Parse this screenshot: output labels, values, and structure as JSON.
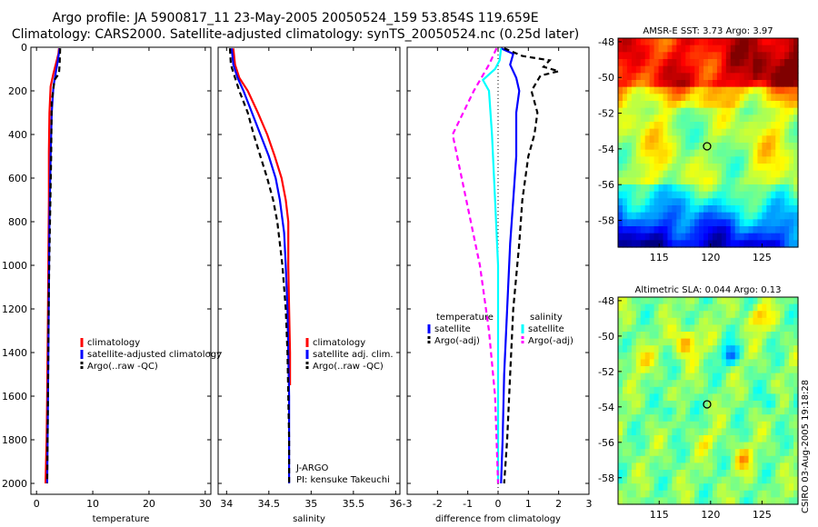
{
  "title_line1": "Argo profile: JA 5900817_11 23-May-2005 20050524_159 53.854S 119.659E",
  "title_line2": "Climatology: CARS2000. Satellite-adjusted climatology: synTS_20050524.nc (0.25d later)",
  "timestamp": "CSIRO 03-Aug-2005 19:18:28",
  "colors": {
    "climatology": "#ff0000",
    "satellite": "#0000ff",
    "argo": "#000000",
    "salinity_satellite": "#00ffff",
    "salinity_argo": "#ff00ff"
  },
  "chart_data": [
    {
      "type": "line",
      "xlabel": "temperature",
      "ylabel": "",
      "xlim": [
        -1,
        31
      ],
      "ylim": [
        2050,
        0
      ],
      "y_reversed": true,
      "xticks": [
        0,
        10,
        20,
        30
      ],
      "yticks": [
        0,
        200,
        400,
        600,
        800,
        1000,
        1200,
        1400,
        1600,
        1800,
        2000
      ],
      "legend_position": "center-right",
      "legend": [
        "climatology",
        "satellite-adjusted climatology",
        "Argo(..raw -QC)"
      ],
      "series": [
        {
          "name": "climatology",
          "color": "#ff0000",
          "dash": "",
          "points": [
            [
              4.0,
              5
            ],
            [
              3.9,
              30
            ],
            [
              3.6,
              60
            ],
            [
              3.0,
              120
            ],
            [
              2.5,
              180
            ],
            [
              2.3,
              300
            ],
            [
              2.2,
              480
            ],
            [
              2.2,
              700
            ],
            [
              2.1,
              1000
            ],
            [
              2.0,
              1300
            ],
            [
              1.9,
              1600
            ],
            [
              1.8,
              1800
            ],
            [
              1.6,
              2000
            ]
          ]
        },
        {
          "name": "satellite-adjusted climatology",
          "color": "#0000ff",
          "dash": "",
          "points": [
            [
              4.1,
              5
            ],
            [
              3.8,
              60
            ],
            [
              3.4,
              120
            ],
            [
              3.0,
              180
            ],
            [
              2.7,
              300
            ],
            [
              2.5,
              500
            ],
            [
              2.3,
              800
            ],
            [
              2.2,
              1100
            ],
            [
              2.1,
              1400
            ],
            [
              2.0,
              1700
            ],
            [
              1.9,
              2000
            ]
          ]
        },
        {
          "name": "Argo(..raw -QC)",
          "color": "#000000",
          "dash": "6,4",
          "points": [
            [
              4.2,
              5
            ],
            [
              4.1,
              80
            ],
            [
              4.0,
              120
            ],
            [
              3.2,
              150
            ],
            [
              2.7,
              250
            ],
            [
              2.6,
              500
            ],
            [
              2.4,
              800
            ],
            [
              2.2,
              1100
            ],
            [
              2.1,
              1400
            ],
            [
              2.0,
              1700
            ],
            [
              1.9,
              2000
            ]
          ]
        }
      ]
    },
    {
      "type": "line",
      "xlabel": "salinity",
      "ylabel": "",
      "xlim": [
        33.9,
        36.05
      ],
      "ylim": [
        2050,
        0
      ],
      "y_reversed": true,
      "xticks": [
        34,
        34.5,
        35,
        35.5,
        36
      ],
      "yticks": [
        0,
        200,
        400,
        600,
        800,
        1000,
        1200,
        1400,
        1600,
        1800,
        2000
      ],
      "legend_position": "center-right",
      "legend": [
        "climatology",
        "satellite adj. clim.",
        "Argo(..raw -QC)"
      ],
      "annotations": [
        "J-ARGO",
        "PI: kensuke Takeuchi"
      ],
      "series": [
        {
          "name": "climatology",
          "color": "#ff0000",
          "dash": "",
          "points": [
            [
              34.08,
              5
            ],
            [
              34.1,
              80
            ],
            [
              34.15,
              140
            ],
            [
              34.25,
              200
            ],
            [
              34.37,
              300
            ],
            [
              34.48,
              400
            ],
            [
              34.57,
              500
            ],
            [
              34.65,
              600
            ],
            [
              34.7,
              700
            ],
            [
              34.73,
              800
            ],
            [
              34.73,
              900
            ],
            [
              34.73,
              1000
            ],
            [
              34.74,
              1200
            ],
            [
              34.75,
              1400
            ],
            [
              34.75,
              1550
            ]
          ]
        },
        {
          "name": "satellite adj. clim.",
          "color": "#0000ff",
          "dash": "",
          "points": [
            [
              34.06,
              5
            ],
            [
              34.08,
              80
            ],
            [
              34.13,
              140
            ],
            [
              34.2,
              200
            ],
            [
              34.3,
              300
            ],
            [
              34.4,
              400
            ],
            [
              34.5,
              500
            ],
            [
              34.58,
              600
            ],
            [
              34.63,
              700
            ],
            [
              34.68,
              850
            ],
            [
              34.7,
              1000
            ],
            [
              34.72,
              1200
            ],
            [
              34.73,
              1400
            ],
            [
              34.74,
              1600
            ],
            [
              34.74,
              1800
            ],
            [
              34.74,
              2000
            ]
          ]
        },
        {
          "name": "Argo(..raw -QC)",
          "color": "#000000",
          "dash": "6,4",
          "points": [
            [
              34.04,
              5
            ],
            [
              34.05,
              80
            ],
            [
              34.1,
              140
            ],
            [
              34.15,
              200
            ],
            [
              34.25,
              300
            ],
            [
              34.32,
              400
            ],
            [
              34.4,
              500
            ],
            [
              34.48,
              600
            ],
            [
              34.55,
              700
            ],
            [
              34.6,
              800
            ],
            [
              34.63,
              900
            ],
            [
              34.66,
              1000
            ],
            [
              34.7,
              1200
            ],
            [
              34.72,
              1400
            ],
            [
              34.73,
              1600
            ],
            [
              34.74,
              1800
            ],
            [
              34.74,
              2000
            ]
          ]
        }
      ]
    },
    {
      "type": "line",
      "xlabel": "difference from climatology",
      "ylabel": "",
      "xlim": [
        -3,
        3
      ],
      "ylim": [
        2050,
        0
      ],
      "y_reversed": true,
      "xticks": [
        -3,
        -2,
        -1,
        0,
        1,
        2,
        3
      ],
      "yticks": [
        0,
        200,
        400,
        600,
        800,
        1000,
        1200,
        1400,
        1600,
        1800,
        2000
      ],
      "legend_position": "center",
      "legend_left_title": "temperature",
      "legend_left": [
        "satellite",
        "Argo(-adj)"
      ],
      "legend_right_title": "salinity",
      "legend_right": [
        "satellite",
        "Argo(-adj)"
      ],
      "series": [
        {
          "name": "temperature satellite",
          "color": "#0000ff",
          "dash": "",
          "points": [
            [
              0.1,
              5
            ],
            [
              0.5,
              30
            ],
            [
              0.4,
              80
            ],
            [
              0.6,
              140
            ],
            [
              0.7,
              200
            ],
            [
              0.6,
              300
            ],
            [
              0.6,
              500
            ],
            [
              0.5,
              700
            ],
            [
              0.4,
              900
            ],
            [
              0.3,
              1200
            ],
            [
              0.2,
              1500
            ],
            [
              0.15,
              1800
            ],
            [
              0.1,
              2000
            ]
          ]
        },
        {
          "name": "temperature Argo(-adj)",
          "color": "#000000",
          "dash": "6,4",
          "points": [
            [
              0.2,
              5
            ],
            [
              0.8,
              40
            ],
            [
              1.7,
              60
            ],
            [
              1.5,
              90
            ],
            [
              2.0,
              110
            ],
            [
              1.4,
              130
            ],
            [
              1.1,
              200
            ],
            [
              1.3,
              300
            ],
            [
              1.2,
              400
            ],
            [
              1.0,
              500
            ],
            [
              0.8,
              700
            ],
            [
              0.7,
              900
            ],
            [
              0.5,
              1200
            ],
            [
              0.4,
              1500
            ],
            [
              0.3,
              1800
            ],
            [
              0.2,
              2000
            ]
          ]
        },
        {
          "name": "salinity satellite",
          "color": "#00ffff",
          "dash": "",
          "points": [
            [
              0.1,
              5
            ],
            [
              0.05,
              60
            ],
            [
              -0.1,
              100
            ],
            [
              -0.5,
              150
            ],
            [
              -0.3,
              200
            ],
            [
              -0.2,
              400
            ],
            [
              -0.1,
              700
            ],
            [
              0.0,
              1000
            ],
            [
              0.0,
              1500
            ],
            [
              0.0,
              2000
            ]
          ]
        },
        {
          "name": "salinity Argo(-adj)",
          "color": "#ff00ff",
          "dash": "6,4",
          "points": [
            [
              -0.05,
              5
            ],
            [
              -0.3,
              80
            ],
            [
              -0.8,
              200
            ],
            [
              -1.5,
              400
            ],
            [
              -1.2,
              600
            ],
            [
              -0.9,
              800
            ],
            [
              -0.6,
              1000
            ],
            [
              -0.3,
              1300
            ],
            [
              -0.1,
              1600
            ],
            [
              0.0,
              2000
            ]
          ]
        }
      ]
    },
    {
      "type": "heatmap",
      "title": "AMSR-E SST: 3.73 Argo: 3.97",
      "xlim": [
        111,
        128.5
      ],
      "ylim": [
        -59.5,
        -47.8
      ],
      "xticks": [
        115,
        120,
        125
      ],
      "yticks": [
        -48,
        -50,
        -52,
        -54,
        -56,
        -58
      ],
      "marker": {
        "lon": 119.659,
        "lat": -53.854
      }
    },
    {
      "type": "heatmap",
      "title": "Altimetric SLA: 0.044 Argo: 0.13",
      "xlim": [
        111,
        128.5
      ],
      "ylim": [
        -59.5,
        -47.8
      ],
      "xticks": [
        115,
        120,
        125
      ],
      "yticks": [
        -48,
        -50,
        -52,
        -54,
        -56,
        -58
      ],
      "marker": {
        "lon": 119.659,
        "lat": -53.854
      }
    }
  ]
}
